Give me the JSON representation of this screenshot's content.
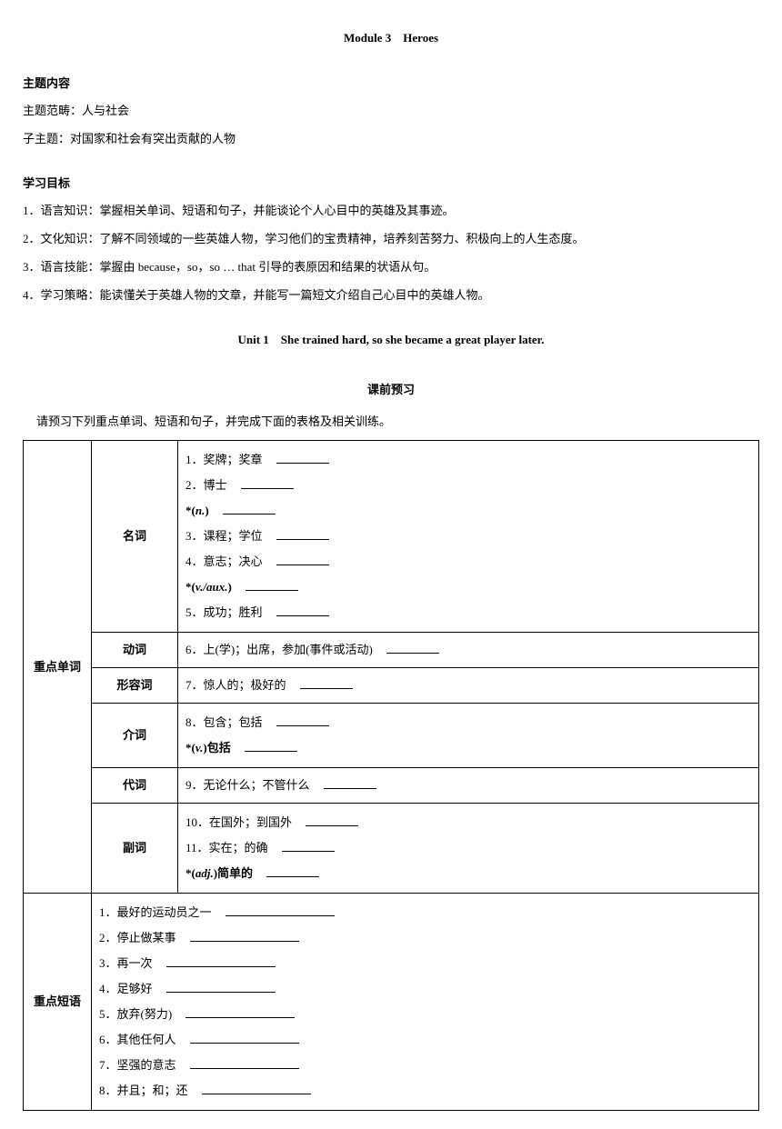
{
  "module_title": "Module 3　Heroes",
  "theme": {
    "heading": "主题内容",
    "scope_label": "主题范畴：",
    "scope_text": "人与社会",
    "sub_label": "子主题：",
    "sub_text": "对国家和社会有突出贡献的人物"
  },
  "objectives": {
    "heading": "学习目标",
    "items": [
      "1．语言知识：掌握相关单词、短语和句子，并能谈论个人心目中的英雄及其事迹。",
      "2．文化知识：了解不同领域的一些英雄人物，学习他们的宝贵精神，培养刻苦努力、积极向上的人生态度。",
      "3．语言技能：掌握由 because，so，so … that 引导的表原因和结果的状语从句。",
      "4．学习策略：能读懂关于英雄人物的文章，并能写一篇短文介绍自己心目中的英雄人物。"
    ]
  },
  "unit_title": "Unit 1　She trained hard, so she became a great player later.",
  "preview_title": "课前预习",
  "preview_instruction": "请预习下列重点单词、短语和句子，并完成下面的表格及相关训练。",
  "table": {
    "vocab_header": "重点单词",
    "phrase_header": "重点短语",
    "noun_label": "名词",
    "verb_label": "动词",
    "adj_label": "形容词",
    "prep_label": "介词",
    "pron_label": "代词",
    "adv_label": "副词",
    "nouns": {
      "n1": "1．奖牌；奖章　",
      "n2": "2．博士　",
      "n2_note_pre": "*(",
      "n2_note_italic": "n.",
      "n2_note_post": ")　",
      "n3": "3．课程；学位　",
      "n4": "4．意志；决心　",
      "n4_note_pre": "*(",
      "n4_note_italic": "v./aux.",
      "n4_note_post": ")　",
      "n5": "5．成功；胜利　"
    },
    "verb": "6．上(学)；出席，参加(事件或活动)　",
    "adj": "7．惊人的；极好的　",
    "prep": {
      "p1": "8．包含；包括　",
      "p2_pre": "*(",
      "p2_italic": "v.",
      "p2_post": ")包括　"
    },
    "pron": "9．无论什么；不管什么　",
    "adv": {
      "a1": "10．在国外；到国外　",
      "a2": "11．实在；的确　",
      "a3_pre": "*(",
      "a3_italic": "adj.",
      "a3_post": ")简单的　"
    },
    "phrases": {
      "p1": "1．最好的运动员之一　",
      "p2": "2．停止做某事　",
      "p3": "3．再一次　",
      "p4": "4．足够好　",
      "p5": "5．放弃(努力)　",
      "p6": "6．其他任何人　",
      "p7": "7．坚强的意志　",
      "p8": "8．并且；和；还　"
    }
  }
}
